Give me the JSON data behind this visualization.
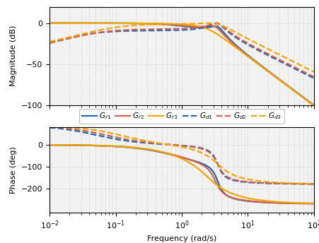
{
  "colors": {
    "blue": "#2166ac",
    "red": "#d6604d",
    "orange": "#f0a500"
  },
  "freq_range": [
    0.01,
    100
  ],
  "mag_ylim": [
    -100,
    20
  ],
  "mag_yticks": [
    -100,
    -50,
    0
  ],
  "phase_ylim": [
    -310,
    80
  ],
  "phase_yticks": [
    -200,
    -100,
    0
  ],
  "xlabel": "Frequency (rad/s)",
  "ylabel_mag": "Magnitude (dB)",
  "ylabel_phase": "Phase (deg)"
}
